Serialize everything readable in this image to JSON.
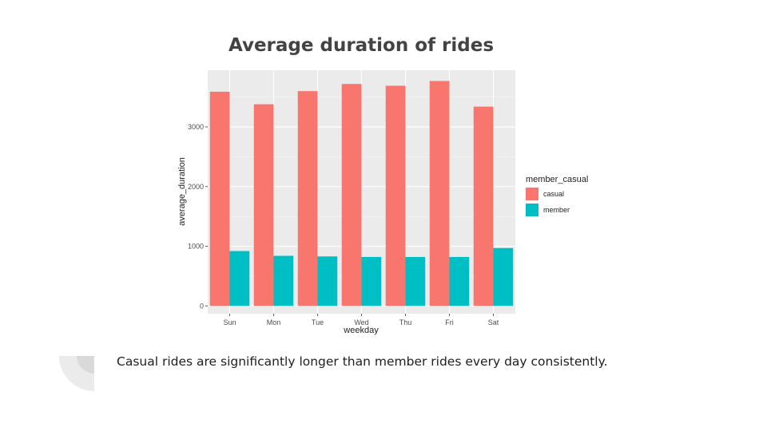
{
  "slide": {
    "title": "Average duration of rides",
    "caption": "Casual rides are significantly longer than member rides every day consistently."
  },
  "colors": {
    "casual": "#F8766D",
    "member": "#00BFC4",
    "panel": "#EBEBEB",
    "grid_major": "#FFFFFF",
    "grid_minor": "#F5F5F5",
    "deco_outer": "#EBEBEB",
    "deco_inner": "#D9D9D9"
  },
  "decoration": {
    "icon": "quarter-ring-icon"
  },
  "chart_data": {
    "type": "bar",
    "title": "",
    "xlabel": "weekday",
    "ylabel": "average_duration",
    "categories": [
      "Sun",
      "Mon",
      "Tue",
      "Wed",
      "Thu",
      "Fri",
      "Sat"
    ],
    "series": [
      {
        "name": "casual",
        "values": [
          3590,
          3380,
          3600,
          3720,
          3690,
          3770,
          3340
        ]
      },
      {
        "name": "member",
        "values": [
          920,
          840,
          830,
          820,
          820,
          820,
          970
        ]
      }
    ],
    "ylim": [
      -130,
      3950
    ],
    "yticks": [
      0,
      1000,
      2000,
      3000
    ],
    "ytick_labels": [
      "0",
      "1000",
      "2000",
      "3000"
    ],
    "legend_title": "member_casual",
    "legend_position": "right",
    "grid": true
  }
}
